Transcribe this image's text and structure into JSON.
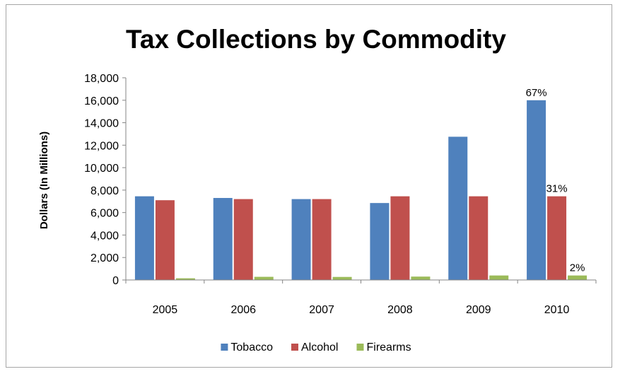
{
  "chart_data": {
    "type": "bar",
    "title": "Tax Collections by Commodity",
    "xlabel": "",
    "ylabel": "Dollars (In Millions)",
    "ylim": [
      0,
      18000
    ],
    "y_ticks": [
      0,
      2000,
      4000,
      6000,
      8000,
      10000,
      12000,
      14000,
      16000,
      18000
    ],
    "y_tick_labels": [
      "0",
      "2,000",
      "4,000",
      "6,000",
      "8,000",
      "10,000",
      "12,000",
      "14,000",
      "16,000",
      "18,000"
    ],
    "grid": false,
    "legend_position": "bottom",
    "categories": [
      "2005",
      "2006",
      "2007",
      "2008",
      "2009",
      "2010"
    ],
    "series": [
      {
        "name": "Tobacco",
        "color": "#4f81bd",
        "values": [
          7450,
          7300,
          7200,
          6850,
          12750,
          16000
        ]
      },
      {
        "name": "Alcohol",
        "color": "#c0504d",
        "values": [
          7100,
          7200,
          7200,
          7450,
          7450,
          7450
        ]
      },
      {
        "name": "Firearms",
        "color": "#9bbb59",
        "values": [
          150,
          280,
          270,
          300,
          400,
          400
        ]
      }
    ],
    "annotations": [
      {
        "series": "Tobacco",
        "category": "2010",
        "text": "67%"
      },
      {
        "series": "Alcohol",
        "category": "2010",
        "text": "31%"
      },
      {
        "series": "Firearms",
        "category": "2010",
        "text": "2%"
      }
    ]
  }
}
